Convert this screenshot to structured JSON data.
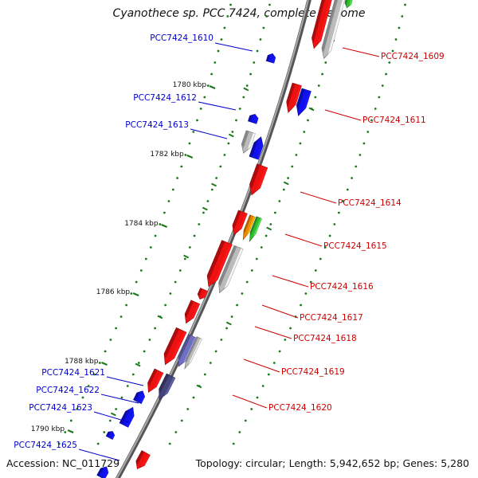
{
  "title": "Cyanothece sp. PCC 7424, complete genome",
  "footer": {
    "accession": "Accession: NC_011729",
    "summary": "Topology: circular; Length: 5,942,652 bp; Genes: 5,280"
  },
  "colors": {
    "backbone": "#7a7a7a",
    "tick": "#1a7a1a",
    "forward_label": "#0000cc",
    "reverse_label": "#cc0000",
    "red_gene": "#ee1111",
    "blue_gene": "#1111ee",
    "gray_gene": "#bbbbbb",
    "purple_gene": "#44447a",
    "lavender_gene": "#7070c0",
    "orange_gene": "#ee8800",
    "green_gene": "#33bb33"
  },
  "scale_labels": [
    {
      "text": "1780 kbp"
    },
    {
      "text": "1782 kbp"
    },
    {
      "text": "1784 kbp"
    },
    {
      "text": "1786 kbp"
    },
    {
      "text": "1788 kbp"
    },
    {
      "text": "1790 kbp"
    }
  ],
  "gene_labels_forward": [
    {
      "text": "PCC7424_1610"
    },
    {
      "text": "PCC7424_1612"
    },
    {
      "text": "PCC7424_1613"
    },
    {
      "text": "PCC7424_1621"
    },
    {
      "text": "PCC7424_1622"
    },
    {
      "text": "PCC7424_1623"
    },
    {
      "text": "PCC7424_1625"
    }
  ],
  "gene_labels_reverse": [
    {
      "text": "PCC7424_1609"
    },
    {
      "text": "PCC7424_1611"
    },
    {
      "text": "PCC7424_1614"
    },
    {
      "text": "PCC7424_1615"
    },
    {
      "text": "PCC7424_1616"
    },
    {
      "text": "PCC7424_1617"
    },
    {
      "text": "PCC7424_1618"
    },
    {
      "text": "PCC7424_1619"
    },
    {
      "text": "PCC7424_1620"
    }
  ]
}
